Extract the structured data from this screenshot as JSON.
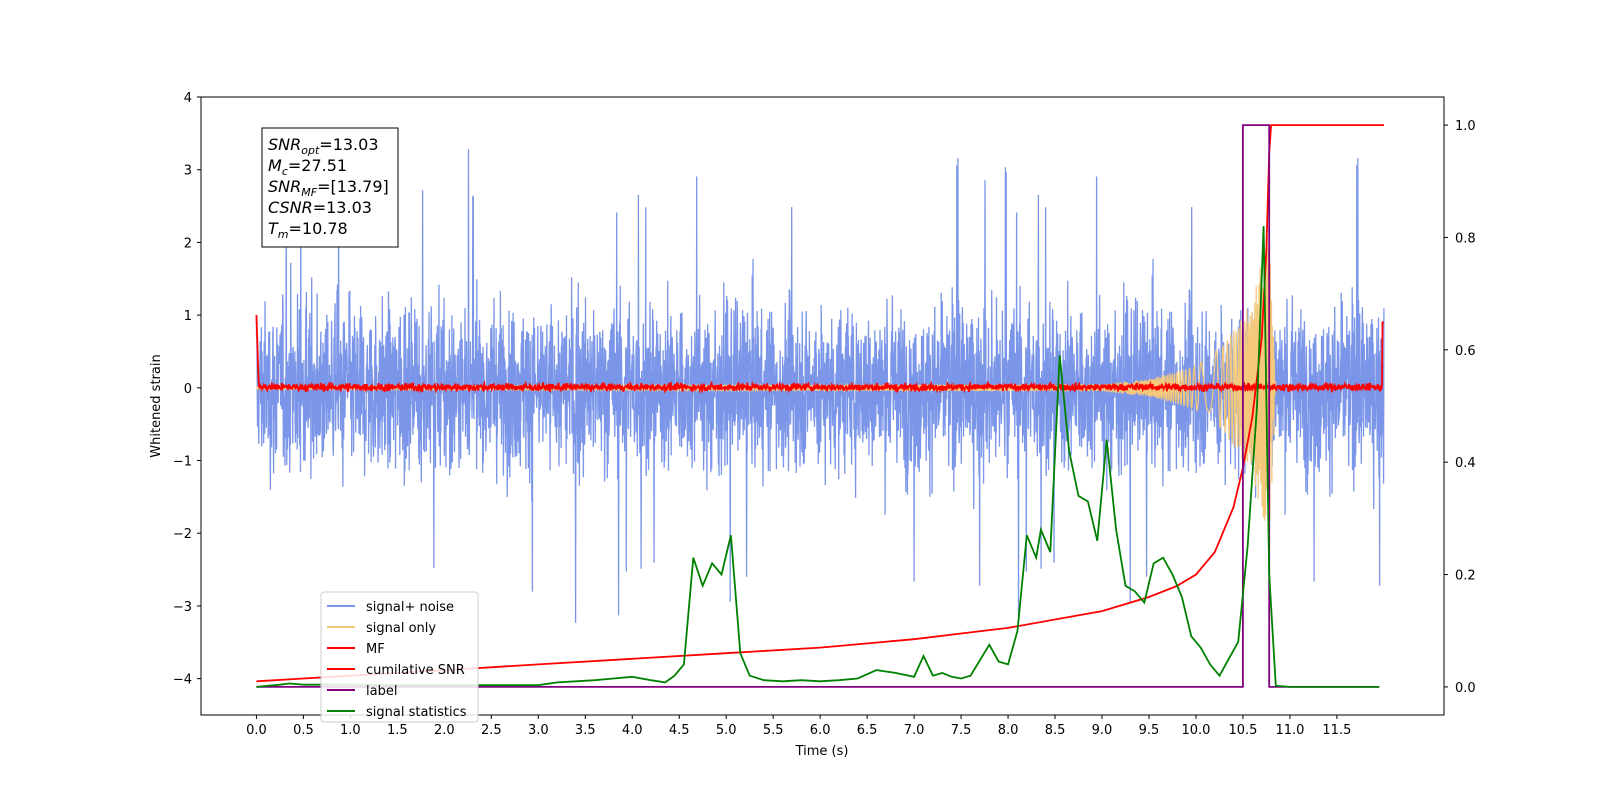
{
  "chart_data": {
    "type": "line",
    "title": "",
    "xlabel": "Time (s)",
    "ylabel": "Whitened strain",
    "y2label": "",
    "xlim": [
      -0.59,
      12.64
    ],
    "ylim": [
      -4.5,
      4.0
    ],
    "y2lim": [
      -0.05,
      1.05
    ],
    "x_ticks": [
      0.0,
      0.5,
      1.0,
      1.5,
      2.0,
      2.5,
      3.0,
      3.5,
      4.0,
      4.5,
      5.0,
      5.5,
      6.0,
      6.5,
      7.0,
      7.5,
      8.0,
      8.5,
      9.0,
      9.5,
      10.0,
      10.5,
      11.0,
      11.5
    ],
    "x_tick_labels": [
      "0.0",
      "0.5",
      "1.0",
      "1.5",
      "2.0",
      "2.5",
      "3.0",
      "3.5",
      "4.0",
      "4.5",
      "5.0",
      "5.5",
      "6.0",
      "6.5",
      "7.0",
      "7.5",
      "8.0",
      "8.5",
      "9.0",
      "9.5",
      "10.0",
      "10.5",
      "11.0",
      "11.5"
    ],
    "y_ticks": [
      -4,
      -3,
      -2,
      -1,
      0,
      1,
      2,
      3,
      4
    ],
    "y_tick_labels": [
      "−4",
      "−3",
      "−2",
      "−1",
      "0",
      "1",
      "2",
      "3",
      "4"
    ],
    "y2_ticks": [
      0.0,
      0.2,
      0.4,
      0.6,
      0.8,
      1.0
    ],
    "y2_tick_labels": [
      "0.0",
      "0.2",
      "0.4",
      "0.6",
      "0.8",
      "1.0"
    ],
    "grid": false,
    "legend_position": "lower-left",
    "annotation": [
      {
        "base": "SNR",
        "sub": "opt",
        "value": "=13.03"
      },
      {
        "base": "M",
        "sub": "c",
        "value": "=27.51"
      },
      {
        "base": "SNR",
        "sub": "MF",
        "value": "=[13.79]"
      },
      {
        "base": "CSNR",
        "sub": "",
        "value": "=13.03"
      },
      {
        "base": "T",
        "sub": "m",
        "value": "=10.78"
      }
    ],
    "series": [
      {
        "name": "signal+ noise",
        "axis": "left",
        "color": "#7b96e8",
        "description": "whitened noisy strain, approx within -2.5..2.3 with peaks to about 3.3",
        "x_range": [
          0.0,
          12.0
        ],
        "envelope": [
          -2.6,
          2.3
        ],
        "peak": 3.3,
        "trough": -3.4
      },
      {
        "name": "signal only",
        "axis": "left",
        "color": "#f5c97a",
        "description": "chirp amplitude growing toward merger",
        "x_range": [
          0.0,
          10.85
        ],
        "amplitude": [
          [
            0.0,
            0.02
          ],
          [
            9.0,
            0.05
          ],
          [
            9.5,
            0.12
          ],
          [
            10.0,
            0.3
          ],
          [
            10.3,
            0.6
          ],
          [
            10.6,
            1.2
          ],
          [
            10.78,
            2.2
          ],
          [
            10.85,
            0.0
          ]
        ]
      },
      {
        "name": "MF",
        "axis": "left",
        "color": "#ff0000",
        "description": "matched filter output around zero",
        "x_range": [
          0.0,
          12.0
        ],
        "start": 1.0,
        "end": 0.9,
        "band": [
          -0.08,
          0.1
        ]
      },
      {
        "name": "cumilative SNR",
        "axis": "right",
        "color": "#ff0000",
        "x": [
          0.0,
          0.5,
          1.0,
          2.0,
          3.0,
          4.0,
          5.0,
          6.0,
          7.0,
          7.5,
          8.0,
          8.5,
          9.0,
          9.5,
          9.8,
          10.0,
          10.2,
          10.4,
          10.5,
          10.6,
          10.7,
          10.75,
          10.78,
          10.8,
          12.0
        ],
        "values": [
          0.01,
          0.015,
          0.02,
          0.03,
          0.04,
          0.05,
          0.06,
          0.07,
          0.085,
          0.095,
          0.105,
          0.12,
          0.135,
          0.16,
          0.18,
          0.2,
          0.24,
          0.32,
          0.39,
          0.48,
          0.62,
          0.78,
          0.95,
          1.0,
          1.0
        ]
      },
      {
        "name": "label",
        "axis": "right",
        "color": "#800080",
        "x": [
          0.0,
          10.5,
          10.5,
          10.7,
          10.7,
          10.78,
          10.78,
          11.95
        ],
        "values": [
          0.0,
          0.0,
          1.0,
          1.0,
          1.0,
          1.0,
          0.0,
          0.0
        ]
      },
      {
        "name": "signal statistics",
        "axis": "right",
        "color": "#008000",
        "x": [
          0.0,
          0.25,
          0.35,
          0.5,
          1.0,
          1.5,
          2.0,
          2.5,
          3.0,
          3.2,
          3.4,
          3.6,
          3.8,
          4.0,
          4.2,
          4.35,
          4.45,
          4.55,
          4.65,
          4.75,
          4.85,
          4.95,
          5.05,
          5.15,
          5.25,
          5.4,
          5.6,
          5.8,
          6.0,
          6.2,
          6.4,
          6.6,
          6.8,
          7.0,
          7.1,
          7.2,
          7.3,
          7.4,
          7.5,
          7.6,
          7.8,
          7.9,
          8.0,
          8.1,
          8.2,
          8.3,
          8.35,
          8.45,
          8.55,
          8.65,
          8.75,
          8.85,
          8.95,
          9.05,
          9.15,
          9.25,
          9.35,
          9.45,
          9.55,
          9.65,
          9.75,
          9.85,
          9.95,
          10.05,
          10.15,
          10.25,
          10.35,
          10.45,
          10.55,
          10.65,
          10.72,
          10.78,
          10.85,
          11.0,
          11.95
        ],
        "values": [
          0.0,
          0.004,
          0.006,
          0.004,
          0.004,
          0.003,
          0.003,
          0.003,
          0.003,
          0.008,
          0.01,
          0.012,
          0.015,
          0.018,
          0.012,
          0.008,
          0.02,
          0.04,
          0.23,
          0.18,
          0.22,
          0.2,
          0.27,
          0.06,
          0.02,
          0.012,
          0.01,
          0.012,
          0.01,
          0.012,
          0.015,
          0.03,
          0.025,
          0.018,
          0.055,
          0.02,
          0.025,
          0.018,
          0.015,
          0.02,
          0.075,
          0.045,
          0.04,
          0.1,
          0.27,
          0.23,
          0.28,
          0.24,
          0.59,
          0.42,
          0.34,
          0.33,
          0.26,
          0.44,
          0.28,
          0.18,
          0.17,
          0.15,
          0.22,
          0.23,
          0.2,
          0.16,
          0.09,
          0.07,
          0.04,
          0.02,
          0.05,
          0.08,
          0.25,
          0.5,
          0.82,
          0.2,
          0.002,
          0.0,
          0.0
        ]
      }
    ]
  }
}
